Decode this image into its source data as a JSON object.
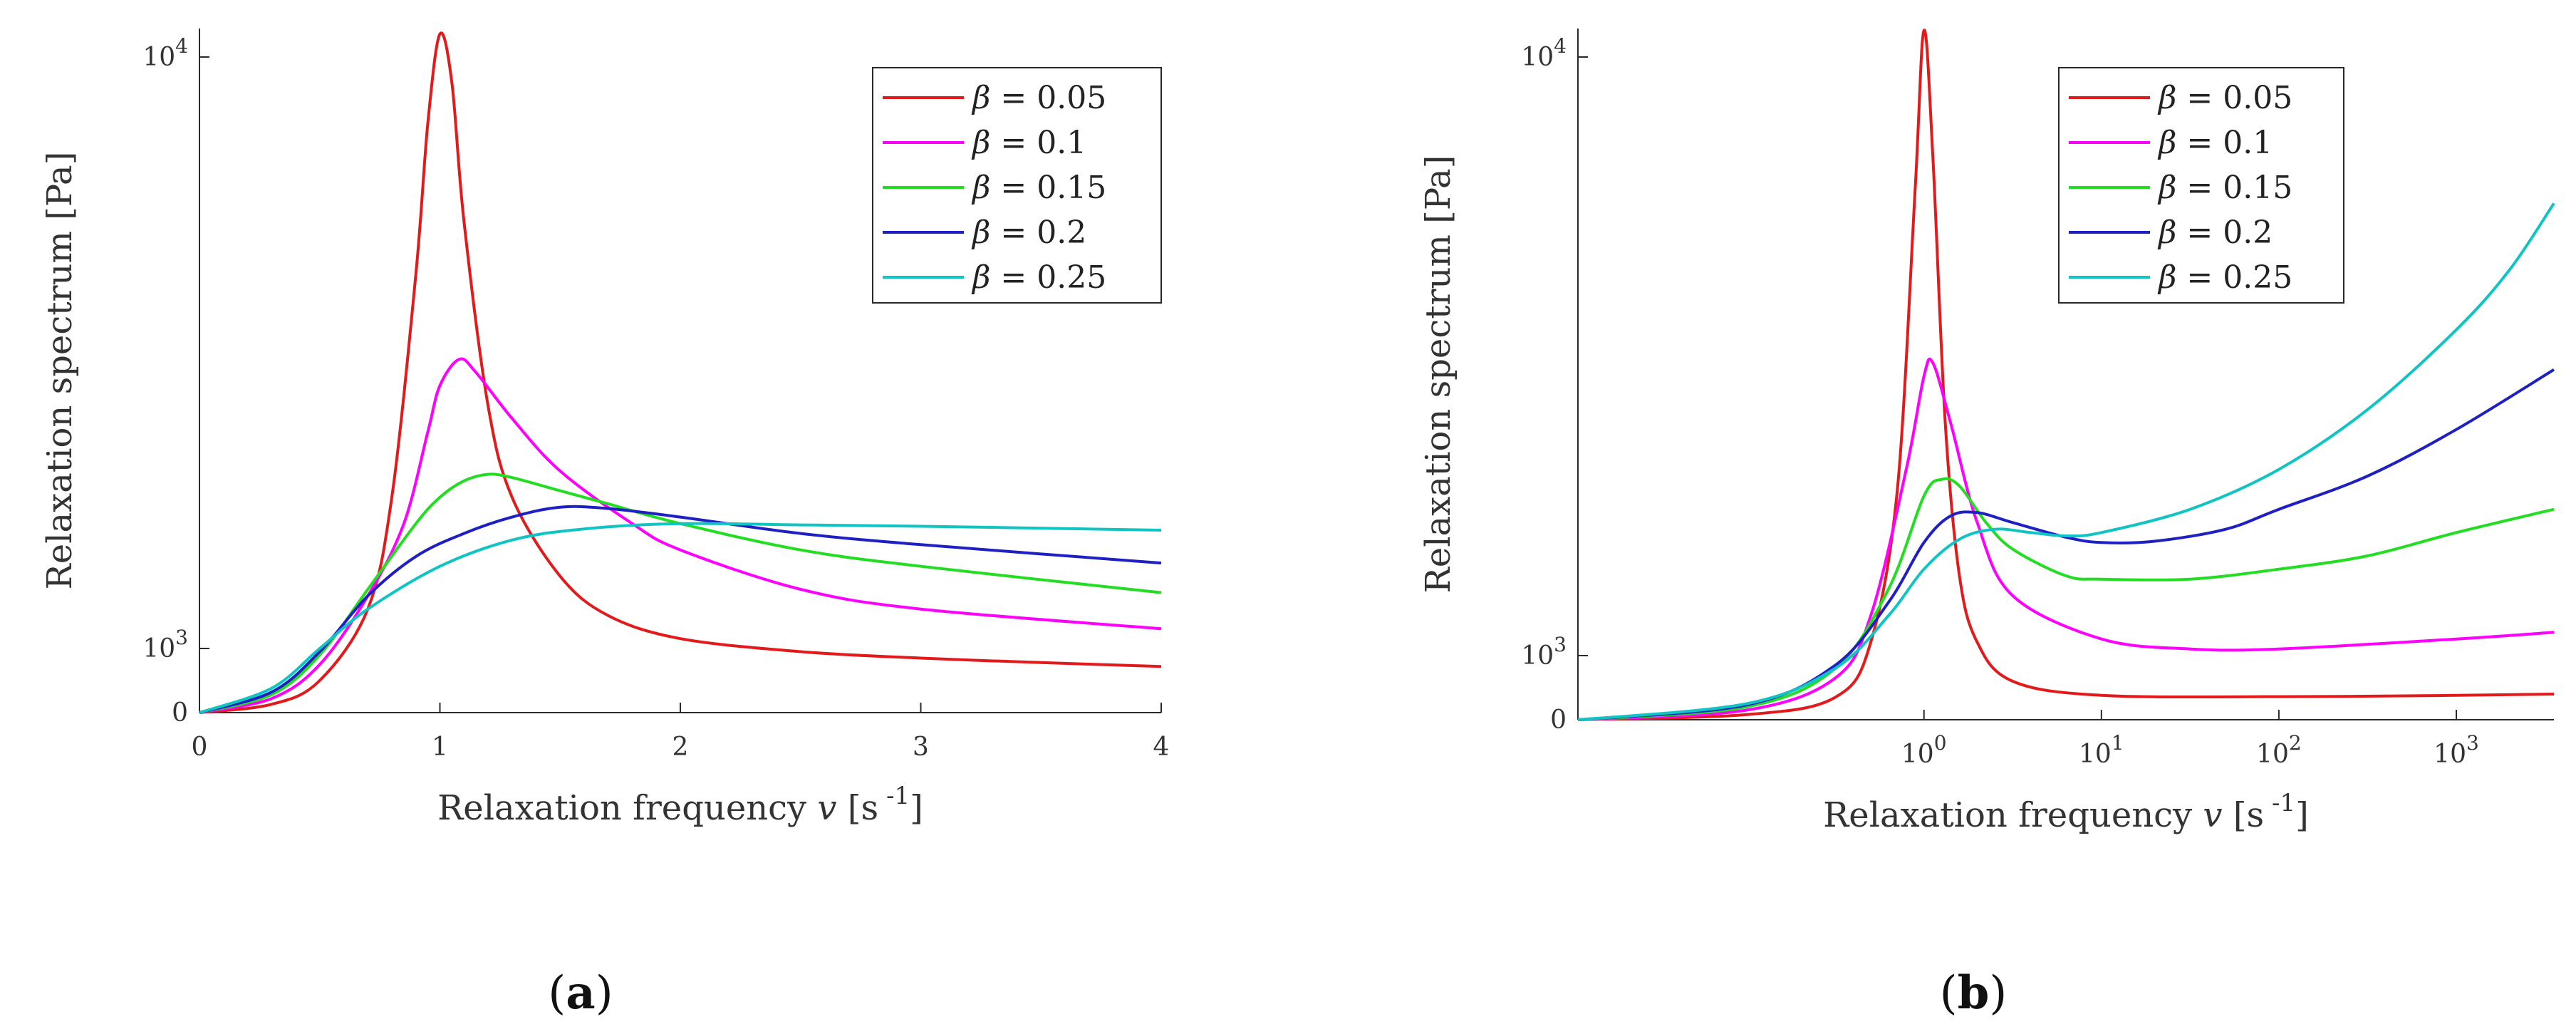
{
  "chart_data": [
    {
      "type": "line",
      "xscale": "linear",
      "panel": "(a)",
      "panel_letter": "a",
      "xlabel": "Relaxation frequency",
      "xvar": "v",
      "xunit_open": "[s",
      "xunit_exp": "-1",
      "xunit_close": "]",
      "ylabel": "Relaxation spectrum  [Pa]",
      "xlim": [
        0,
        4
      ],
      "ylim": [
        0,
        10800
      ],
      "xticks": [
        0,
        1,
        2,
        3,
        4
      ],
      "xtick_labels": [
        "0",
        "1",
        "2",
        "3",
        "4"
      ],
      "yticks": [
        0,
        1000,
        10000
      ],
      "ytick_labels": [
        {
          "base": "0",
          "exp": ""
        },
        {
          "base": "10",
          "exp": "3"
        },
        {
          "base": "10",
          "exp": "4"
        }
      ],
      "legend_position": "top-right",
      "series": [
        {
          "name": "0.05",
          "color": "#e31a1c",
          "x": [
            0,
            0.3,
            0.5,
            0.7,
            0.8,
            0.9,
            0.95,
            1.0,
            1.05,
            1.1,
            1.2,
            1.3,
            1.5,
            1.7,
            2.0,
            2.5,
            3.0,
            3.5,
            4.0
          ],
          "y": [
            0,
            130,
            500,
            1600,
            3300,
            6700,
            9000,
            10350,
            9600,
            7500,
            4700,
            3300,
            2100,
            1500,
            1150,
            950,
            850,
            780,
            720
          ]
        },
        {
          "name": "0.1",
          "color": "#ff00ff",
          "x": [
            0,
            0.3,
            0.5,
            0.7,
            0.85,
            0.95,
            1.0,
            1.08,
            1.15,
            1.3,
            1.5,
            1.8,
            2.0,
            2.5,
            3.0,
            4.0
          ],
          "y": [
            0,
            220,
            750,
            1800,
            2900,
            4300,
            5000,
            5400,
            5200,
            4500,
            3700,
            2900,
            2500,
            1900,
            1600,
            1300
          ]
        },
        {
          "name": "0.15",
          "color": "#22dd22",
          "x": [
            0,
            0.3,
            0.5,
            0.7,
            0.9,
            1.0,
            1.1,
            1.2,
            1.3,
            1.5,
            1.7,
            2.0,
            2.5,
            3.0,
            4.0
          ],
          "y": [
            0,
            280,
            900,
            1900,
            2900,
            3300,
            3550,
            3650,
            3600,
            3400,
            3200,
            2900,
            2500,
            2250,
            1850
          ]
        },
        {
          "name": "0.2",
          "color": "#1f20c4",
          "x": [
            0,
            0.3,
            0.5,
            0.7,
            0.9,
            1.1,
            1.3,
            1.5,
            1.7,
            2.0,
            2.5,
            3.0,
            4.0
          ],
          "y": [
            0,
            320,
            950,
            1800,
            2400,
            2750,
            3000,
            3150,
            3130,
            3000,
            2750,
            2580,
            2300
          ]
        },
        {
          "name": "0.25",
          "color": "#11c4c4",
          "x": [
            0,
            0.3,
            0.5,
            0.7,
            1.0,
            1.3,
            1.6,
            2.0,
            2.5,
            3.0,
            4.0
          ],
          "y": [
            0,
            380,
            1000,
            1600,
            2250,
            2650,
            2820,
            2900,
            2880,
            2860,
            2800
          ]
        }
      ],
      "legend_label": "β"
    },
    {
      "type": "line",
      "xscale": "log",
      "panel": "(b)",
      "panel_letter": "b",
      "xlabel": "Relaxation frequency",
      "xvar": "v",
      "xunit_open": "[s",
      "xunit_exp": "-1",
      "xunit_close": "]",
      "ylabel": "Relaxation spectrum  [Pa]",
      "xlim_log10": [
        -1.95,
        3.55
      ],
      "ylim": [
        0,
        10800
      ],
      "xticks_log10": [
        0,
        1,
        2,
        3
      ],
      "xtick_labels": [
        {
          "base": "10",
          "exp": "0"
        },
        {
          "base": "10",
          "exp": "1"
        },
        {
          "base": "10",
          "exp": "2"
        },
        {
          "base": "10",
          "exp": "3"
        }
      ],
      "yticks": [
        0,
        1000,
        10000
      ],
      "ytick_labels": [
        {
          "base": "0",
          "exp": ""
        },
        {
          "base": "10",
          "exp": "3"
        },
        {
          "base": "10",
          "exp": "4"
        }
      ],
      "legend_position": "top-right",
      "series": [
        {
          "name": "0.05",
          "color": "#e31a1c",
          "log10x": [
            -1.95,
            -1.0,
            -0.5,
            -0.3,
            -0.15,
            -0.05,
            0.0,
            0.05,
            0.12,
            0.2,
            0.3,
            0.5,
            1.0,
            2.0,
            3.0,
            3.55
          ],
          "y": [
            0,
            80,
            350,
            1200,
            3500,
            8000,
            10400,
            8500,
            4500,
            2200,
            1200,
            600,
            380,
            360,
            380,
            400
          ]
        },
        {
          "name": "0.1",
          "color": "#ff00ff",
          "log10x": [
            -1.95,
            -1.0,
            -0.5,
            -0.3,
            -0.1,
            0.0,
            0.05,
            0.15,
            0.3,
            0.5,
            1.0,
            1.5,
            2.0,
            3.0,
            3.55
          ],
          "y": [
            0,
            150,
            650,
            1600,
            3800,
            5200,
            5400,
            4500,
            3000,
            1900,
            1250,
            1100,
            1100,
            1250,
            1350
          ]
        },
        {
          "name": "0.15",
          "color": "#22dd22",
          "log10x": [
            -1.95,
            -1.0,
            -0.5,
            -0.2,
            0.0,
            0.1,
            0.2,
            0.35,
            0.5,
            0.8,
            1.0,
            1.5,
            2.0,
            2.5,
            3.0,
            3.55
          ],
          "y": [
            0,
            200,
            800,
            2000,
            3400,
            3650,
            3550,
            3000,
            2600,
            2200,
            2150,
            2150,
            2300,
            2500,
            2850,
            3200
          ]
        },
        {
          "name": "0.2",
          "color": "#1f20c4",
          "log10x": [
            -1.95,
            -1.0,
            -0.5,
            -0.2,
            0.0,
            0.15,
            0.3,
            0.5,
            0.8,
            1.0,
            1.3,
            1.7,
            2.0,
            2.5,
            3.0,
            3.55
          ],
          "y": [
            0,
            230,
            850,
            1800,
            2700,
            3100,
            3150,
            3000,
            2780,
            2700,
            2720,
            2900,
            3200,
            3700,
            4400,
            5300
          ]
        },
        {
          "name": "0.25",
          "color": "#11c4c4",
          "log10x": [
            -1.95,
            -1.0,
            -0.5,
            -0.2,
            0.0,
            0.2,
            0.4,
            0.6,
            0.8,
            1.0,
            1.5,
            2.0,
            2.5,
            3.0,
            3.3,
            3.55
          ],
          "y": [
            0,
            250,
            800,
            1600,
            2300,
            2750,
            2900,
            2850,
            2800,
            2850,
            3200,
            3800,
            4700,
            5900,
            6800,
            7800
          ]
        }
      ],
      "legend_label": "β"
    }
  ]
}
